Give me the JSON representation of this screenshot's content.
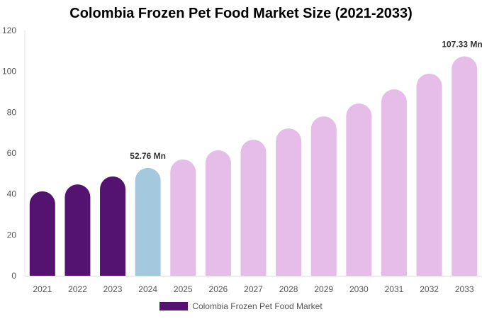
{
  "chart_data": {
    "type": "bar",
    "title": "Colombia Frozen Pet Food Market Size (2021-2033)",
    "categories": [
      "2021",
      "2022",
      "2023",
      "2024",
      "2025",
      "2026",
      "2027",
      "2028",
      "2029",
      "2030",
      "2031",
      "2032",
      "2033"
    ],
    "series": [
      {
        "name": "Colombia Frozen Pet Food Market",
        "values": [
          41.3,
          44.7,
          48.6,
          52.76,
          56.9,
          61.4,
          66.6,
          72.1,
          78.0,
          84.3,
          91.2,
          98.9,
          107.33
        ]
      }
    ],
    "data_labels": {
      "3": "52.76 Mn",
      "12": "107.33 Mn"
    },
    "ylim": [
      0,
      120
    ],
    "yticks": [
      0,
      20,
      40,
      60,
      80,
      100,
      120
    ],
    "grid": false,
    "legend": "bottom",
    "colors": {
      "historical": "#541271",
      "current": "#a4c9de",
      "forecast": "#e6bde9"
    }
  }
}
